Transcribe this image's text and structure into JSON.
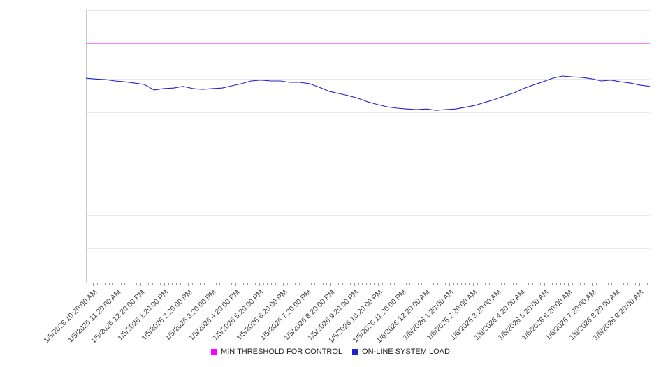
{
  "chart_data": {
    "type": "line",
    "title": "",
    "xlabel": "",
    "ylabel": "",
    "ylim": [
      0,
      100
    ],
    "grid": "horizontal",
    "grid_divisions": 8,
    "legend_position": "bottom",
    "x_tick_labels": [
      "1/5/2026 10:20:00 AM",
      "1/5/2026 11:20:00 AM",
      "1/5/2026 12:20:00 PM",
      "1/5/2026 1:20:00 PM",
      "1/5/2026 2:20:00 PM",
      "1/5/2026 3:20:00 PM",
      "1/5/2026 4:20:00 PM",
      "1/5/2026 5:20:00 PM",
      "1/5/2026 6:20:00 PM",
      "1/5/2026 7:20:00 PM",
      "1/5/2026 8:20:00 PM",
      "1/5/2026 9:20:00 PM",
      "1/5/2026 10:20:00 PM",
      "1/5/2026 11:20:00 PM",
      "1/6/2026 12:20:00 AM",
      "1/6/2026 1:20:00 AM",
      "1/6/2026 2:20:00 AM",
      "1/6/2026 3:20:00 AM",
      "1/6/2026 4:20:00 AM",
      "1/6/2026 5:20:00 AM",
      "1/6/2026 6:20:00 AM",
      "1/6/2026 7:20:00 AM",
      "1/6/2026 8:20:00 AM",
      "1/6/2026 9:20:00 AM"
    ],
    "series": [
      {
        "name": "MIN THRESHOLD FOR CONTROL",
        "type": "threshold",
        "color": "#ff00ff",
        "value": 88
      },
      {
        "name": "ON-LINE SYSTEM LOAD",
        "type": "line",
        "color": "#2222cc",
        "values": [
          75.1,
          74.8,
          74.6,
          74.1,
          73.8,
          73.3,
          72.8,
          70.8,
          71.3,
          71.5,
          72.1,
          71.3,
          71.0,
          71.3,
          71.5,
          72.3,
          73.1,
          74.1,
          74.4,
          74.1,
          74.1,
          73.6,
          73.6,
          73.1,
          71.8,
          70.3,
          69.5,
          68.7,
          67.7,
          66.4,
          65.4,
          64.6,
          64.1,
          63.8,
          63.6,
          63.8,
          63.3,
          63.6,
          63.8,
          64.4,
          65.1,
          66.2,
          67.2,
          68.5,
          69.7,
          71.3,
          72.6,
          73.8,
          75.1,
          75.9,
          75.6,
          75.4,
          74.9,
          74.1,
          74.4,
          73.8,
          73.3,
          72.6,
          72.1
        ]
      }
    ],
    "axis_color": "#cccccc",
    "gridline_color": "#e8e8e8",
    "tick_color": "#999999"
  },
  "legend": {
    "items": [
      {
        "label": "MIN THRESHOLD FOR CONTROL",
        "color": "#ff00ff"
      },
      {
        "label": "ON-LINE SYSTEM LOAD",
        "color": "#2222cc"
      }
    ]
  }
}
